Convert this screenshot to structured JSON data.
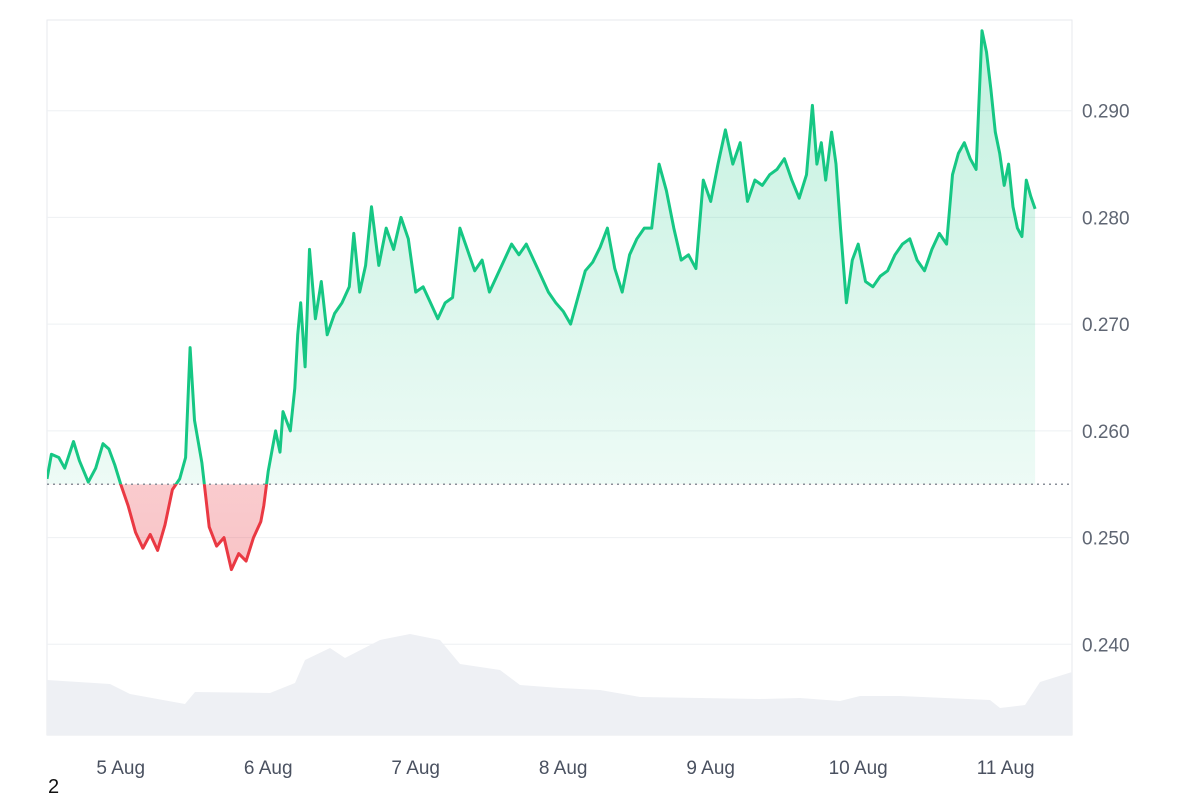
{
  "footnote": "2",
  "chart_data": {
    "type": "area",
    "title": "",
    "xlabel": "",
    "ylabel": "",
    "baseline": 0.255,
    "ylim": [
      0.2315,
      0.2985
    ],
    "y_ticks": [
      0.24,
      0.25,
      0.26,
      0.27,
      0.28,
      0.29
    ],
    "y_tick_labels": [
      "0.240",
      "0.250",
      "0.260",
      "0.270",
      "0.280",
      "0.290"
    ],
    "x_range_days": [
      4.5,
      11.45
    ],
    "x_tick_days": [
      5,
      6,
      7,
      8,
      9,
      10,
      11
    ],
    "x_tick_labels": [
      "5 Aug",
      "6 Aug",
      "7 Aug",
      "8 Aug",
      "9 Aug",
      "10 Aug",
      "11 Aug"
    ],
    "grid": true,
    "colors": {
      "up": "#16c784",
      "down": "#ea3943",
      "up_fill": "#16c784",
      "down_fill": "#ea3943",
      "volume": "#eef0f4",
      "grid": "#eef0f3",
      "baseline": "#8a8f99"
    },
    "series": [
      {
        "values": [
          [
            4.5,
            0.2555
          ],
          [
            4.53,
            0.2578
          ],
          [
            4.58,
            0.2575
          ],
          [
            4.62,
            0.2565
          ],
          [
            4.68,
            0.259
          ],
          [
            4.72,
            0.2572
          ],
          [
            4.78,
            0.2552
          ],
          [
            4.83,
            0.2565
          ],
          [
            4.88,
            0.2588
          ],
          [
            4.92,
            0.2583
          ],
          [
            4.96,
            0.2568
          ],
          [
            5.0,
            0.255
          ],
          [
            5.05,
            0.253
          ],
          [
            5.1,
            0.2505
          ],
          [
            5.15,
            0.249
          ],
          [
            5.2,
            0.2503
          ],
          [
            5.25,
            0.2488
          ],
          [
            5.3,
            0.2512
          ],
          [
            5.35,
            0.2545
          ],
          [
            5.4,
            0.2555
          ],
          [
            5.44,
            0.2575
          ],
          [
            5.47,
            0.2678
          ],
          [
            5.5,
            0.261
          ],
          [
            5.55,
            0.257
          ],
          [
            5.6,
            0.251
          ],
          [
            5.65,
            0.2492
          ],
          [
            5.7,
            0.25
          ],
          [
            5.75,
            0.247
          ],
          [
            5.8,
            0.2485
          ],
          [
            5.85,
            0.2478
          ],
          [
            5.9,
            0.25
          ],
          [
            5.95,
            0.2515
          ],
          [
            5.97,
            0.253
          ],
          [
            6.0,
            0.2562
          ],
          [
            6.05,
            0.26
          ],
          [
            6.08,
            0.258
          ],
          [
            6.1,
            0.2618
          ],
          [
            6.15,
            0.26
          ],
          [
            6.18,
            0.264
          ],
          [
            6.2,
            0.269
          ],
          [
            6.22,
            0.272
          ],
          [
            6.25,
            0.266
          ],
          [
            6.28,
            0.277
          ],
          [
            6.32,
            0.2705
          ],
          [
            6.36,
            0.274
          ],
          [
            6.4,
            0.269
          ],
          [
            6.45,
            0.271
          ],
          [
            6.5,
            0.272
          ],
          [
            6.55,
            0.2735
          ],
          [
            6.58,
            0.2785
          ],
          [
            6.62,
            0.273
          ],
          [
            6.66,
            0.2755
          ],
          [
            6.7,
            0.281
          ],
          [
            6.75,
            0.2755
          ],
          [
            6.8,
            0.279
          ],
          [
            6.85,
            0.277
          ],
          [
            6.9,
            0.28
          ],
          [
            6.95,
            0.278
          ],
          [
            7.0,
            0.273
          ],
          [
            7.05,
            0.2735
          ],
          [
            7.1,
            0.272
          ],
          [
            7.15,
            0.2705
          ],
          [
            7.2,
            0.272
          ],
          [
            7.25,
            0.2725
          ],
          [
            7.3,
            0.279
          ],
          [
            7.35,
            0.277
          ],
          [
            7.4,
            0.275
          ],
          [
            7.45,
            0.276
          ],
          [
            7.5,
            0.273
          ],
          [
            7.55,
            0.2745
          ],
          [
            7.6,
            0.276
          ],
          [
            7.65,
            0.2775
          ],
          [
            7.7,
            0.2765
          ],
          [
            7.75,
            0.2775
          ],
          [
            7.8,
            0.276
          ],
          [
            7.85,
            0.2745
          ],
          [
            7.9,
            0.273
          ],
          [
            7.95,
            0.272
          ],
          [
            8.0,
            0.2712
          ],
          [
            8.05,
            0.27
          ],
          [
            8.1,
            0.2725
          ],
          [
            8.15,
            0.275
          ],
          [
            8.2,
            0.2758
          ],
          [
            8.25,
            0.2772
          ],
          [
            8.3,
            0.279
          ],
          [
            8.35,
            0.2752
          ],
          [
            8.4,
            0.273
          ],
          [
            8.45,
            0.2765
          ],
          [
            8.5,
            0.278
          ],
          [
            8.55,
            0.279
          ],
          [
            8.6,
            0.279
          ],
          [
            8.65,
            0.285
          ],
          [
            8.7,
            0.2825
          ],
          [
            8.75,
            0.279
          ],
          [
            8.8,
            0.276
          ],
          [
            8.85,
            0.2765
          ],
          [
            8.9,
            0.2752
          ],
          [
            8.95,
            0.2835
          ],
          [
            9.0,
            0.2815
          ],
          [
            9.05,
            0.285
          ],
          [
            9.1,
            0.2882
          ],
          [
            9.15,
            0.285
          ],
          [
            9.2,
            0.287
          ],
          [
            9.25,
            0.2815
          ],
          [
            9.3,
            0.2835
          ],
          [
            9.35,
            0.283
          ],
          [
            9.4,
            0.284
          ],
          [
            9.45,
            0.2845
          ],
          [
            9.5,
            0.2855
          ],
          [
            9.55,
            0.2835
          ],
          [
            9.6,
            0.2818
          ],
          [
            9.65,
            0.284
          ],
          [
            9.69,
            0.2905
          ],
          [
            9.72,
            0.285
          ],
          [
            9.75,
            0.287
          ],
          [
            9.78,
            0.2835
          ],
          [
            9.82,
            0.288
          ],
          [
            9.85,
            0.285
          ],
          [
            9.88,
            0.279
          ],
          [
            9.92,
            0.272
          ],
          [
            9.96,
            0.276
          ],
          [
            10.0,
            0.2775
          ],
          [
            10.05,
            0.274
          ],
          [
            10.1,
            0.2735
          ],
          [
            10.15,
            0.2745
          ],
          [
            10.2,
            0.275
          ],
          [
            10.25,
            0.2765
          ],
          [
            10.3,
            0.2775
          ],
          [
            10.35,
            0.278
          ],
          [
            10.4,
            0.276
          ],
          [
            10.45,
            0.275
          ],
          [
            10.5,
            0.277
          ],
          [
            10.55,
            0.2785
          ],
          [
            10.6,
            0.2775
          ],
          [
            10.64,
            0.284
          ],
          [
            10.68,
            0.286
          ],
          [
            10.72,
            0.287
          ],
          [
            10.76,
            0.2855
          ],
          [
            10.8,
            0.2845
          ],
          [
            10.84,
            0.2975
          ],
          [
            10.87,
            0.2955
          ],
          [
            10.9,
            0.292
          ],
          [
            10.93,
            0.288
          ],
          [
            10.96,
            0.286
          ],
          [
            10.99,
            0.283
          ],
          [
            11.02,
            0.285
          ],
          [
            11.05,
            0.281
          ],
          [
            11.08,
            0.279
          ],
          [
            11.11,
            0.2782
          ],
          [
            11.14,
            0.2835
          ],
          [
            11.17,
            0.282
          ],
          [
            11.2,
            0.2808
          ]
        ]
      }
    ]
  }
}
